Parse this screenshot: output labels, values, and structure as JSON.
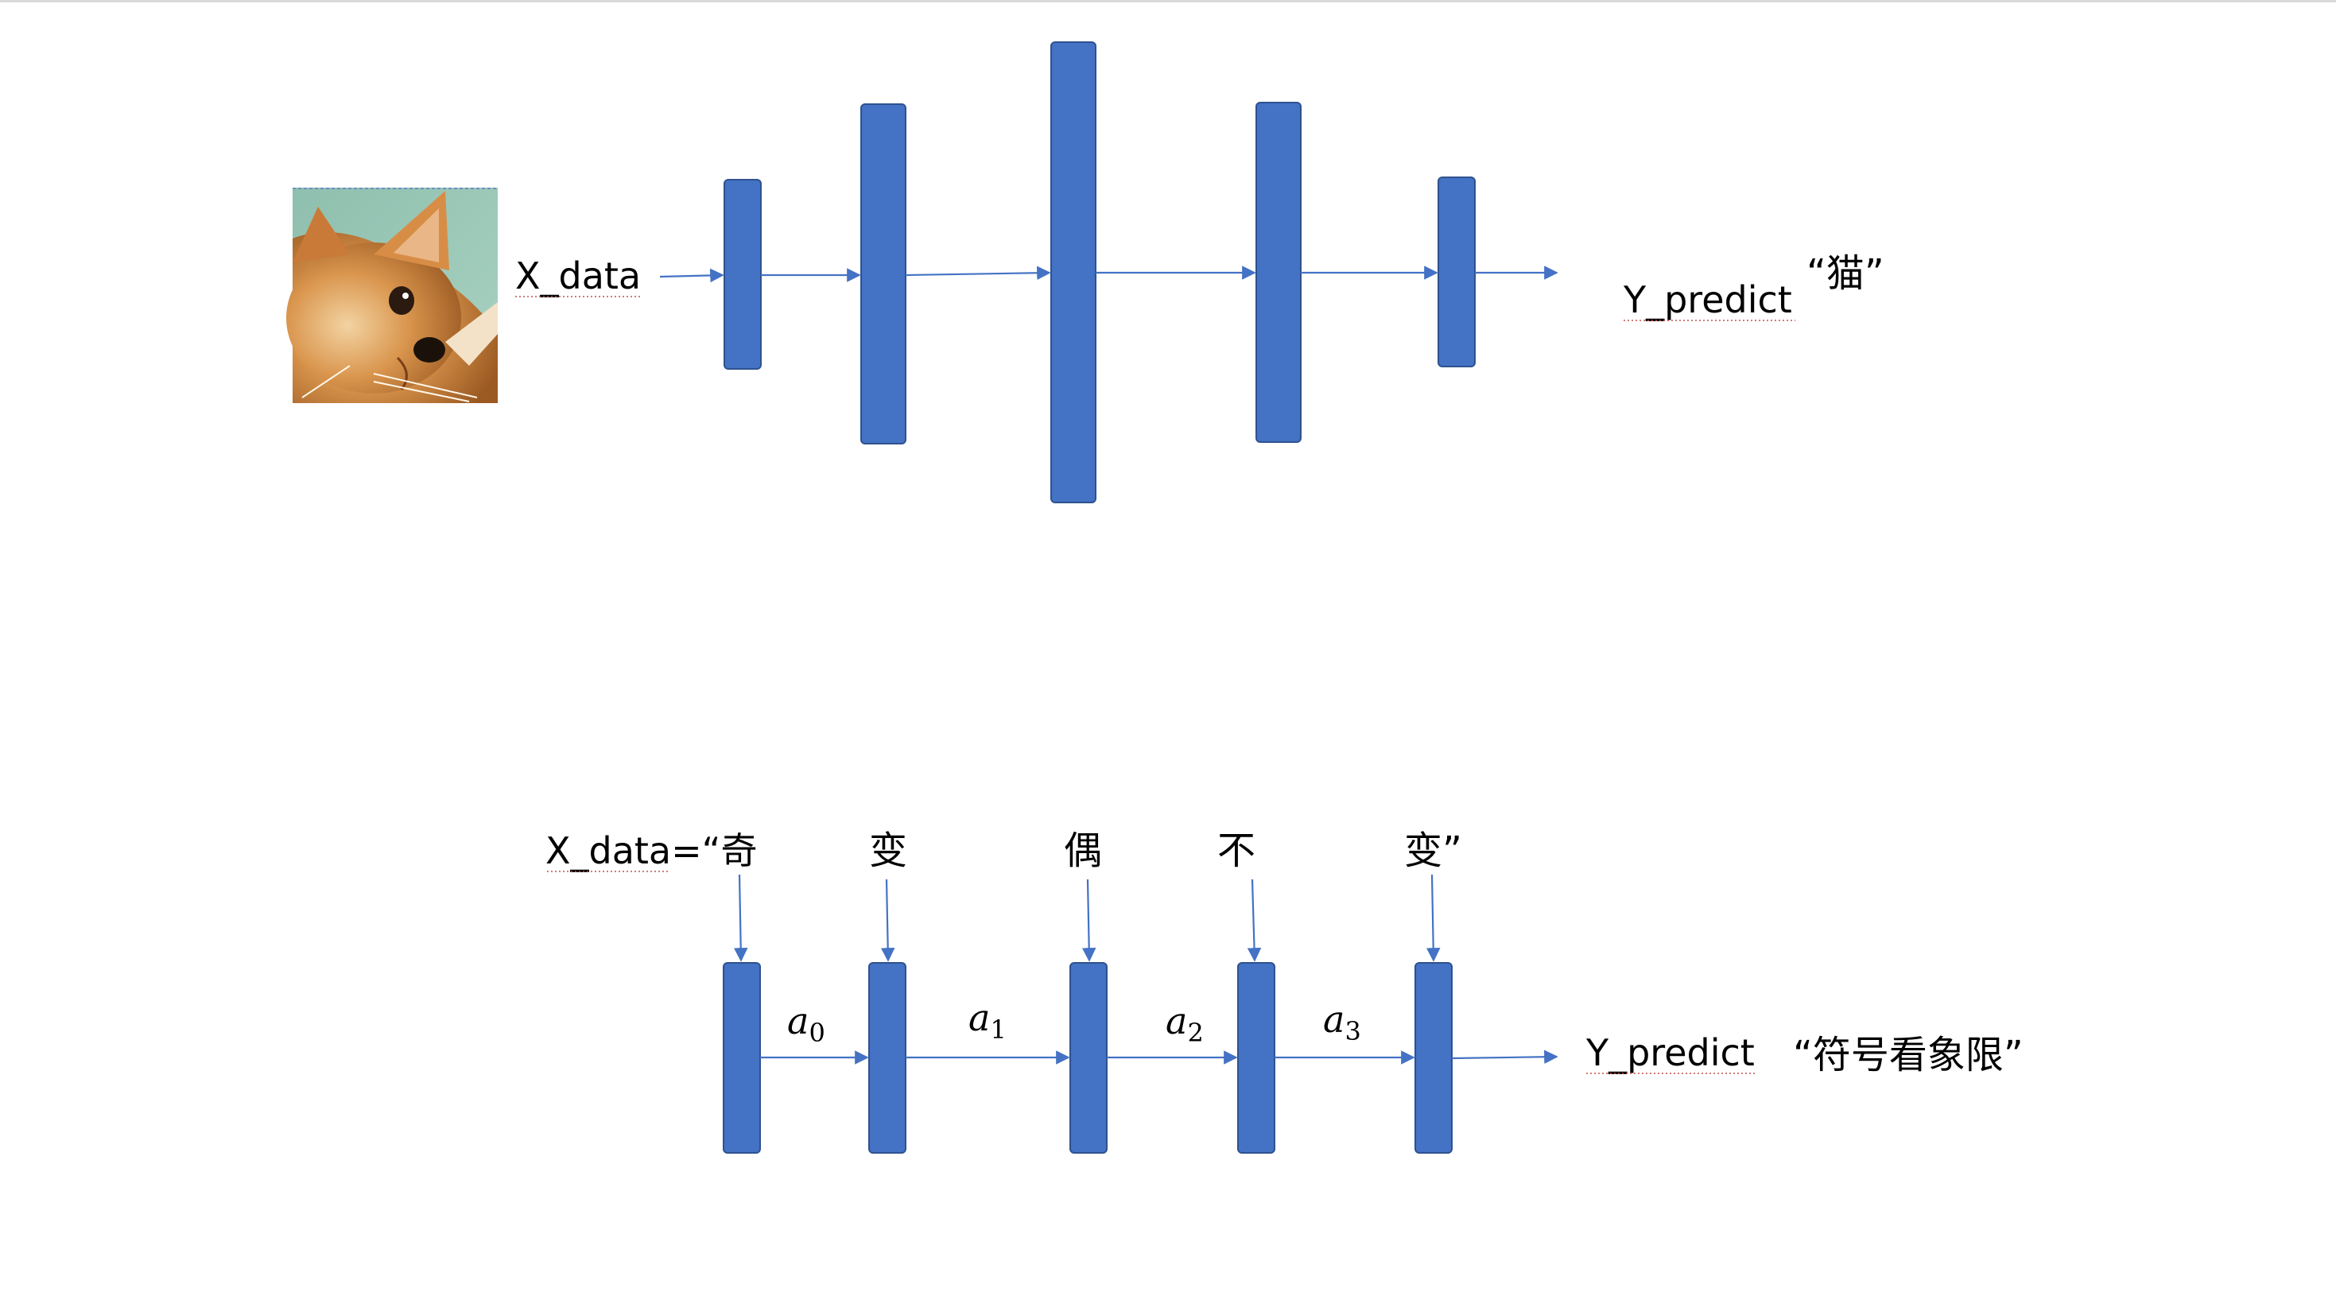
{
  "cnn": {
    "input_image": "cat-photo",
    "x_label": "X_data",
    "y_label": "Y_predict",
    "y_value": "“猫”"
  },
  "rnn": {
    "x_label": "X_data=“奇",
    "tokens": [
      "变",
      "偶",
      "不",
      "变”"
    ],
    "hidden_states": [
      {
        "base": "a",
        "sub": "0"
      },
      {
        "base": "a",
        "sub": "1"
      },
      {
        "base": "a",
        "sub": "2"
      },
      {
        "base": "a",
        "sub": "3"
      }
    ],
    "y_label": "Y_predict",
    "y_value": "“符号看象限”"
  },
  "colors": {
    "block_fill": "#4472c4",
    "block_stroke": "#2f528f",
    "arrow": "#4472c4",
    "spellcheck_underline": "#c0504d"
  }
}
